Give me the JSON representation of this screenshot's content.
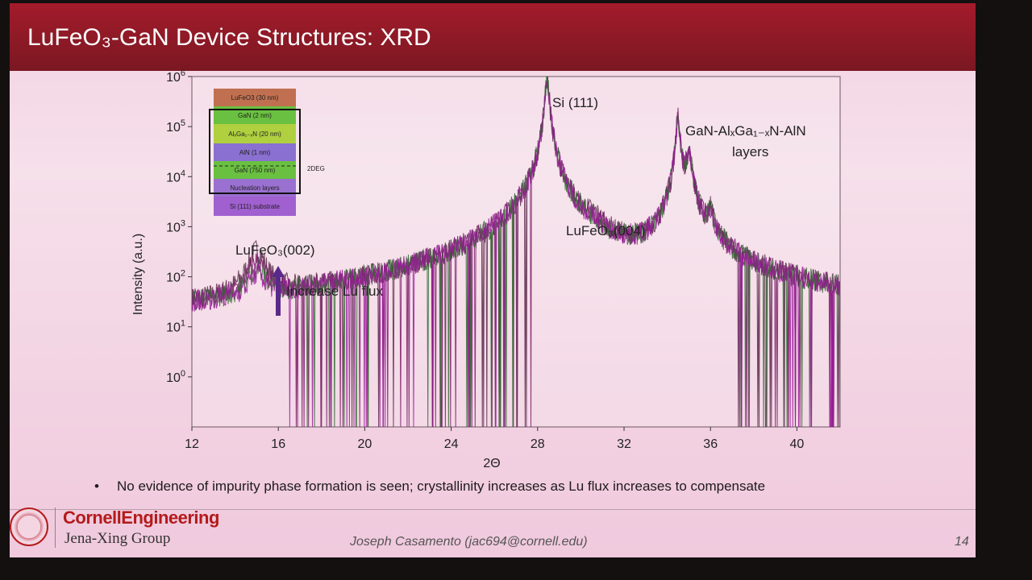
{
  "slide": {
    "title": "LuFeO₃-GaN Device Structures: XRD",
    "bullet": "No evidence of impurity phase formation is seen; crystallinity increases as Lu flux increases to compensate",
    "footer_author": "Joseph Casamento (jac694@cornell.edu)",
    "page_number": "14",
    "logo_main": "CornellEngineering",
    "logo_sub": "Jena-Xing Group"
  },
  "chart_data": {
    "type": "line",
    "x_label": "2Θ",
    "y_label": "Intensity (a.u.)",
    "y_scale": "log",
    "xlim": [
      12,
      42
    ],
    "ylim_log10": [
      -1,
      6
    ],
    "x_ticks": [
      "12",
      "16",
      "20",
      "24",
      "28",
      "32",
      "36",
      "40"
    ],
    "y_ticks": [
      {
        "base": "10",
        "exp": "0"
      },
      {
        "base": "10",
        "exp": "1"
      },
      {
        "base": "10",
        "exp": "2"
      },
      {
        "base": "10",
        "exp": "3"
      },
      {
        "base": "10",
        "exp": "4"
      },
      {
        "base": "10",
        "exp": "5"
      },
      {
        "base": "10",
        "exp": "6"
      }
    ],
    "series_colors": [
      "#5a2a4a",
      "#7a1a6a",
      "#2f6a2f",
      "#9a1a9a"
    ],
    "peaks": [
      {
        "x": 15.0,
        "label": "LuFeO₃(002)",
        "max_intensity": 300
      },
      {
        "x": 28.44,
        "label": "Si (111)",
        "max_intensity": 1000000
      },
      {
        "x": 30.6,
        "label": "LuFeO₃(004)",
        "max_intensity": 700
      },
      {
        "x": 34.5,
        "label": "GaN-AlₓGa₁₋ₓN-AlN layers",
        "max_intensity": 150000
      },
      {
        "x": 35.0,
        "label": "",
        "max_intensity": 30000
      },
      {
        "x": 36.0,
        "label": "",
        "max_intensity": 1500
      }
    ],
    "annotation_arrow": "Increase Lu flux",
    "annotation_peak_002": "LuFeO₃(002)",
    "annotation_peak_004": "LuFeO₃(004)",
    "annotation_si": "Si (111)",
    "annotation_layers_line1": "GaN-AlₓGa₁₋ₓN-AlN",
    "annotation_layers_line2": "layers",
    "arrow_color": "#5a2a8a",
    "inset_stack": [
      {
        "label": "LuFeO3 (30 nm)",
        "color": "#c07050"
      },
      {
        "label": "GaN (2 nm)",
        "color": "#6ac040"
      },
      {
        "label": "AlₓGa₁₋ₓN (20 nm)",
        "color": "#b0d040"
      },
      {
        "label": "AlN (1 nm)",
        "color": "#8a70d0"
      },
      {
        "label": "GaN (750 nm)",
        "color": "#6ac040"
      },
      {
        "label": "Nucleation layers",
        "color": "#9a70d0"
      },
      {
        "label": "Si (111) substrate",
        "color": "#a060d0"
      }
    ],
    "inset_side_label": "2DEG"
  }
}
